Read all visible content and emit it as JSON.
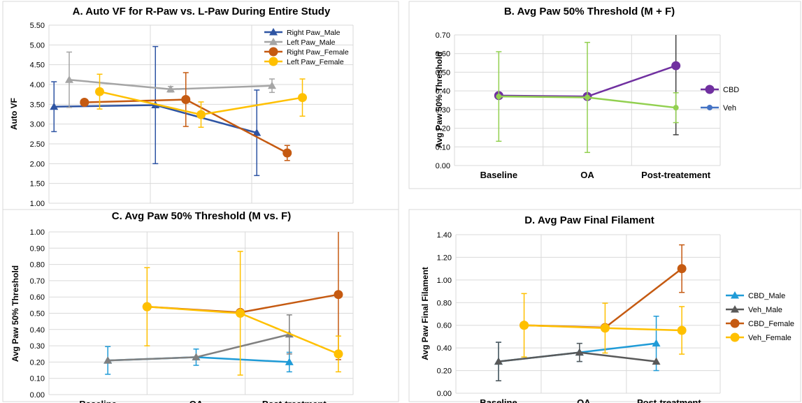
{
  "chart_data": [
    {
      "id": "A",
      "type": "line",
      "title": "A. Auto VF for R-Paw vs. L-Paw During Entire Study",
      "ylabel": "Auto VF",
      "xlabel": "",
      "ylim": [
        1.0,
        5.5
      ],
      "yticks": [
        "1.00",
        "1.50",
        "2.00",
        "2.50",
        "3.00",
        "3.50",
        "4.00",
        "4.50",
        "5.00",
        "5.50"
      ],
      "categories": [
        "",
        "",
        ""
      ],
      "grid": true,
      "legend": "top-right",
      "series": [
        {
          "name": "Right Paw_Male",
          "color": "#2e54a3",
          "marker": "triangle",
          "x": [
            0.0,
            1.0,
            2.0
          ],
          "values": [
            3.44,
            3.48,
            2.78
          ],
          "err": [
            0.63,
            1.48,
            1.08
          ]
        },
        {
          "name": "Left Paw_Male",
          "color": "#a5a5a5",
          "marker": "triangle",
          "x": [
            0.15,
            1.15,
            2.15
          ],
          "values": [
            4.12,
            3.88,
            3.97
          ],
          "err": [
            0.7,
            0.07,
            0.17
          ]
        },
        {
          "name": "Right Paw_Female",
          "color": "#c55a11",
          "marker": "circle",
          "x": [
            0.3,
            1.3,
            2.3
          ],
          "values": [
            3.55,
            3.62,
            2.27
          ],
          "err": [
            0,
            0.68,
            0.19
          ]
        },
        {
          "name": "Left Paw_Female",
          "color": "#ffc000",
          "marker": "circle",
          "x": [
            0.45,
            1.45,
            2.45
          ],
          "values": [
            3.82,
            3.24,
            3.67
          ],
          "err": [
            0.44,
            0.32,
            0.47
          ]
        }
      ]
    },
    {
      "id": "B",
      "type": "line",
      "title": "B. Avg Paw 50% Threshold (M + F)",
      "ylabel": "Avg Paw 50% Threshold",
      "xlabel": "",
      "ylim": [
        0,
        0.7
      ],
      "yticks": [
        "0.00",
        "0.10",
        "0.20",
        "0.30",
        "0.40",
        "0.50",
        "0.60",
        "0.70"
      ],
      "categories": [
        "Baseline",
        "OA",
        "Post-treatement"
      ],
      "grid": true,
      "legend": "right",
      "series": [
        {
          "name": "CBD",
          "color": "#7030a0",
          "errcolor": "#404040",
          "marker": "circle",
          "x": [
            0,
            1,
            2
          ],
          "values": [
            0.375,
            0.37,
            0.535
          ],
          "err": [
            0,
            0,
            0.37
          ]
        },
        {
          "name": "Veh",
          "color": "#92d050",
          "legendcolor": "#4472c4",
          "marker": "dot",
          "x": [
            0,
            1,
            2
          ],
          "values": [
            0.37,
            0.365,
            0.31
          ],
          "err": [
            0.24,
            0.295,
            0.08
          ]
        }
      ]
    },
    {
      "id": "C",
      "type": "line",
      "title": "C. Avg Paw 50% Threshold (M vs. F)",
      "ylabel": "Avg Paw 50% Threshold",
      "xlabel": "",
      "ylim": [
        0,
        1.0
      ],
      "yticks": [
        "0.00",
        "0.10",
        "0.20",
        "0.30",
        "0.40",
        "0.50",
        "0.60",
        "0.70",
        "0.80",
        "0.90",
        "1.00"
      ],
      "categories": [
        "Baseline",
        "OA",
        "Post-treatment"
      ],
      "grid": true,
      "legend": "none",
      "series": [
        {
          "name": "",
          "color": "#1f9bd7",
          "marker": "triangle",
          "x": [
            0.1,
            1.0,
            1.95
          ],
          "values": [
            0.21,
            0.23,
            0.2
          ],
          "err": [
            0.085,
            0.05,
            0.06
          ]
        },
        {
          "name": "",
          "color": "#808080",
          "marker": "triangle",
          "x": [
            0.1,
            1.0,
            1.95
          ],
          "values": [
            0.21,
            0.23,
            0.37
          ],
          "err": [
            0,
            0,
            0.12
          ]
        },
        {
          "name": "",
          "color": "#c55a11",
          "marker": "circle",
          "x": [
            0.5,
            1.45,
            2.45
          ],
          "values": [
            0.54,
            0.505,
            0.615
          ],
          "err": [
            0,
            0,
            0.4
          ]
        },
        {
          "name": "",
          "color": "#ffc000",
          "marker": "circle",
          "x": [
            0.5,
            1.45,
            2.45
          ],
          "values": [
            0.54,
            0.5,
            0.25
          ],
          "err": [
            0.24,
            0.38,
            0.11
          ]
        }
      ]
    },
    {
      "id": "D",
      "type": "line",
      "title": "D. Avg Paw Final Filament",
      "ylabel": "Avg Paw Final Filament",
      "xlabel": "",
      "ylim": [
        0,
        1.4
      ],
      "yticks": [
        "0.00",
        "0.20",
        "0.40",
        "0.60",
        "0.80",
        "1.00",
        "1.20",
        "1.40"
      ],
      "categories": [
        "Baseline",
        "OA",
        "Post-treatment"
      ],
      "grid": true,
      "legend": "right",
      "series": [
        {
          "name": "CBD_Male",
          "color": "#1f9bd7",
          "marker": "triangle",
          "x": [
            0,
            0.95,
            1.85
          ],
          "values": [
            0.28,
            0.36,
            0.44
          ],
          "err": [
            0.17,
            0.08,
            0.24
          ]
        },
        {
          "name": "Veh_Male",
          "color": "#595959",
          "marker": "triangle",
          "x": [
            0,
            0.95,
            1.85
          ],
          "values": [
            0.28,
            0.36,
            0.28
          ],
          "err": [
            0.17,
            0.08,
            0.0
          ]
        },
        {
          "name": "CBD_Female",
          "color": "#c55a11",
          "marker": "circle",
          "x": [
            0.3,
            1.25,
            2.15
          ],
          "values": [
            0.6,
            0.58,
            1.1
          ],
          "err": [
            0,
            0,
            0.21
          ]
        },
        {
          "name": "Veh_Female",
          "color": "#ffc000",
          "marker": "circle",
          "x": [
            0.3,
            1.25,
            2.15
          ],
          "values": [
            0.6,
            0.575,
            0.555
          ],
          "err": [
            0.28,
            0.22,
            0.21
          ]
        }
      ]
    }
  ]
}
